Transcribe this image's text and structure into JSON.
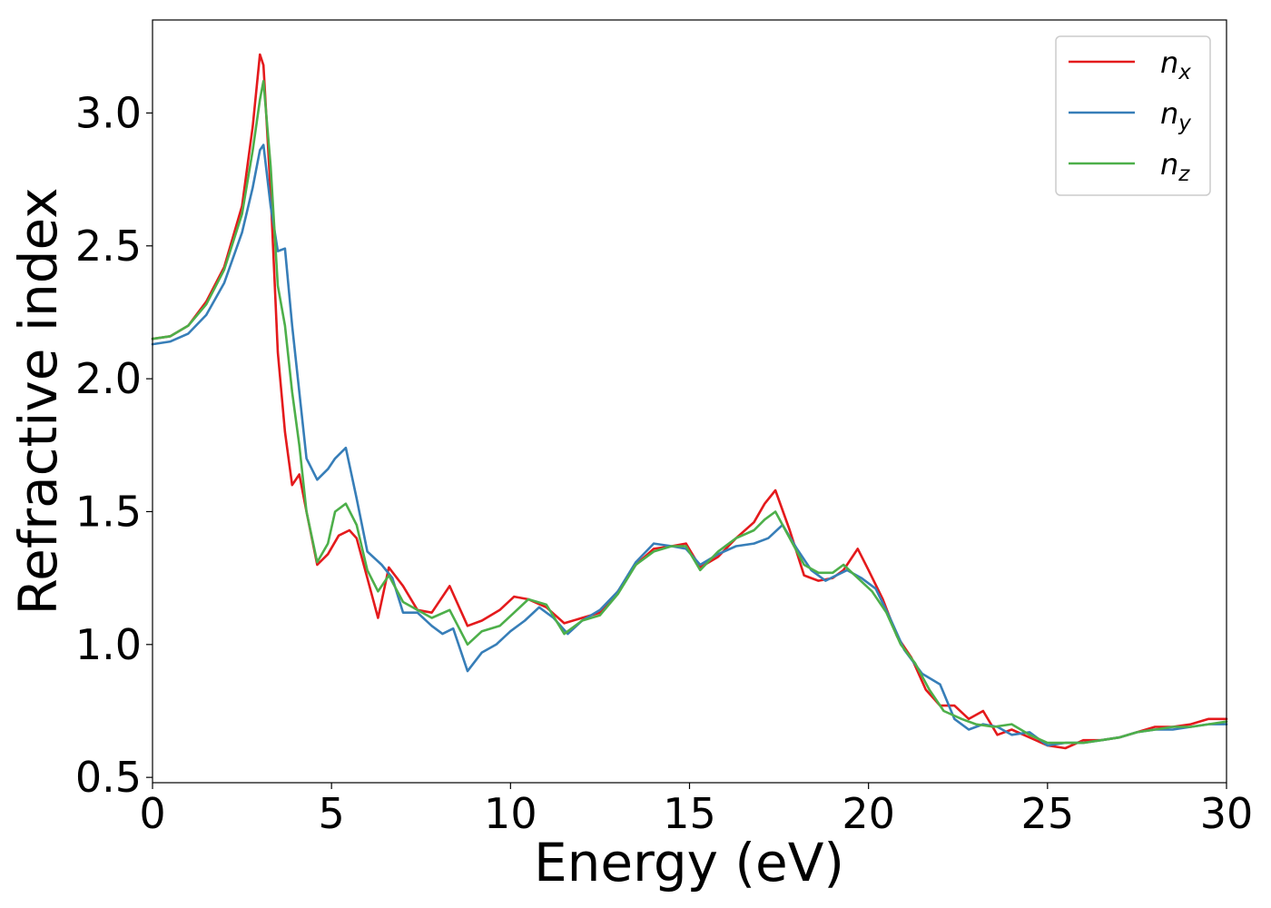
{
  "chart_data": {
    "type": "line",
    "title": "",
    "xlabel": "Energy (eV)",
    "ylabel": "Refractive index",
    "xlim": [
      0,
      30
    ],
    "ylim": [
      0.48,
      3.35
    ],
    "xticks": [
      0,
      5,
      10,
      15,
      20,
      25,
      30
    ],
    "yticks": [
      0.5,
      1.0,
      1.5,
      2.0,
      2.5,
      3.0
    ],
    "xtick_labels": [
      "0",
      "5",
      "10",
      "15",
      "20",
      "25",
      "30"
    ],
    "ytick_labels": [
      "0.5",
      "1.0",
      "1.5",
      "2.0",
      "2.5",
      "3.0"
    ],
    "grid": false,
    "legend_position": "top-right",
    "series": [
      {
        "name": "n_x",
        "legend_main": "n",
        "legend_sub": "x",
        "color": "#e41a1c",
        "points": [
          [
            0,
            2.15
          ],
          [
            0.5,
            2.16
          ],
          [
            1,
            2.2
          ],
          [
            1.5,
            2.29
          ],
          [
            2,
            2.42
          ],
          [
            2.5,
            2.65
          ],
          [
            2.8,
            2.95
          ],
          [
            3.0,
            3.22
          ],
          [
            3.1,
            3.18
          ],
          [
            3.3,
            2.7
          ],
          [
            3.5,
            2.1
          ],
          [
            3.7,
            1.8
          ],
          [
            3.9,
            1.6
          ],
          [
            4.1,
            1.64
          ],
          [
            4.3,
            1.5
          ],
          [
            4.6,
            1.3
          ],
          [
            4.9,
            1.34
          ],
          [
            5.2,
            1.41
          ],
          [
            5.5,
            1.43
          ],
          [
            5.7,
            1.4
          ],
          [
            6.0,
            1.25
          ],
          [
            6.3,
            1.1
          ],
          [
            6.6,
            1.29
          ],
          [
            7.0,
            1.22
          ],
          [
            7.4,
            1.13
          ],
          [
            7.8,
            1.12
          ],
          [
            8.3,
            1.22
          ],
          [
            8.8,
            1.07
          ],
          [
            9.2,
            1.09
          ],
          [
            9.7,
            1.13
          ],
          [
            10.1,
            1.18
          ],
          [
            10.5,
            1.17
          ],
          [
            11.0,
            1.14
          ],
          [
            11.5,
            1.08
          ],
          [
            12.0,
            1.1
          ],
          [
            12.5,
            1.12
          ],
          [
            13.0,
            1.2
          ],
          [
            13.5,
            1.3
          ],
          [
            14.0,
            1.36
          ],
          [
            14.5,
            1.37
          ],
          [
            14.9,
            1.38
          ],
          [
            15.3,
            1.29
          ],
          [
            15.8,
            1.33
          ],
          [
            16.3,
            1.4
          ],
          [
            16.8,
            1.46
          ],
          [
            17.1,
            1.53
          ],
          [
            17.4,
            1.58
          ],
          [
            17.8,
            1.43
          ],
          [
            18.2,
            1.26
          ],
          [
            18.6,
            1.24
          ],
          [
            19.0,
            1.25
          ],
          [
            19.3,
            1.28
          ],
          [
            19.7,
            1.36
          ],
          [
            20.0,
            1.28
          ],
          [
            20.4,
            1.17
          ],
          [
            20.8,
            1.03
          ],
          [
            21.2,
            0.95
          ],
          [
            21.6,
            0.83
          ],
          [
            22.0,
            0.77
          ],
          [
            22.4,
            0.77
          ],
          [
            22.8,
            0.72
          ],
          [
            23.2,
            0.75
          ],
          [
            23.6,
            0.66
          ],
          [
            24.0,
            0.68
          ],
          [
            24.5,
            0.65
          ],
          [
            25.0,
            0.62
          ],
          [
            25.5,
            0.61
          ],
          [
            26.0,
            0.64
          ],
          [
            26.5,
            0.64
          ],
          [
            27.0,
            0.65
          ],
          [
            27.5,
            0.67
          ],
          [
            28.0,
            0.69
          ],
          [
            28.5,
            0.69
          ],
          [
            29.0,
            0.7
          ],
          [
            29.5,
            0.72
          ],
          [
            30.0,
            0.72
          ]
        ]
      },
      {
        "name": "n_y",
        "legend_main": "n",
        "legend_sub": "y",
        "color": "#377eb8",
        "points": [
          [
            0,
            2.13
          ],
          [
            0.5,
            2.14
          ],
          [
            1,
            2.17
          ],
          [
            1.5,
            2.24
          ],
          [
            2,
            2.36
          ],
          [
            2.5,
            2.55
          ],
          [
            2.8,
            2.72
          ],
          [
            3.0,
            2.86
          ],
          [
            3.1,
            2.88
          ],
          [
            3.3,
            2.65
          ],
          [
            3.5,
            2.48
          ],
          [
            3.7,
            2.49
          ],
          [
            3.9,
            2.2
          ],
          [
            4.1,
            1.95
          ],
          [
            4.3,
            1.7
          ],
          [
            4.6,
            1.62
          ],
          [
            4.9,
            1.66
          ],
          [
            5.1,
            1.7
          ],
          [
            5.4,
            1.74
          ],
          [
            5.7,
            1.55
          ],
          [
            6.0,
            1.35
          ],
          [
            6.4,
            1.3
          ],
          [
            6.7,
            1.25
          ],
          [
            7.0,
            1.12
          ],
          [
            7.4,
            1.12
          ],
          [
            7.8,
            1.07
          ],
          [
            8.1,
            1.04
          ],
          [
            8.4,
            1.06
          ],
          [
            8.8,
            0.9
          ],
          [
            9.2,
            0.97
          ],
          [
            9.6,
            1.0
          ],
          [
            10.0,
            1.05
          ],
          [
            10.4,
            1.09
          ],
          [
            10.8,
            1.14
          ],
          [
            11.2,
            1.1
          ],
          [
            11.6,
            1.04
          ],
          [
            12.0,
            1.09
          ],
          [
            12.5,
            1.13
          ],
          [
            13.0,
            1.2
          ],
          [
            13.5,
            1.31
          ],
          [
            14.0,
            1.38
          ],
          [
            14.5,
            1.37
          ],
          [
            14.9,
            1.36
          ],
          [
            15.3,
            1.3
          ],
          [
            15.8,
            1.34
          ],
          [
            16.3,
            1.37
          ],
          [
            16.8,
            1.38
          ],
          [
            17.2,
            1.4
          ],
          [
            17.6,
            1.45
          ],
          [
            18.0,
            1.36
          ],
          [
            18.4,
            1.28
          ],
          [
            18.8,
            1.24
          ],
          [
            19.1,
            1.26
          ],
          [
            19.4,
            1.28
          ],
          [
            19.8,
            1.25
          ],
          [
            20.2,
            1.21
          ],
          [
            20.6,
            1.1
          ],
          [
            21.0,
            0.98
          ],
          [
            21.5,
            0.89
          ],
          [
            22.0,
            0.85
          ],
          [
            22.4,
            0.72
          ],
          [
            22.8,
            0.68
          ],
          [
            23.2,
            0.7
          ],
          [
            23.6,
            0.69
          ],
          [
            24.0,
            0.66
          ],
          [
            24.5,
            0.67
          ],
          [
            25.0,
            0.62
          ],
          [
            25.5,
            0.63
          ],
          [
            26.0,
            0.63
          ],
          [
            26.5,
            0.64
          ],
          [
            27.0,
            0.65
          ],
          [
            27.5,
            0.67
          ],
          [
            28.0,
            0.68
          ],
          [
            28.5,
            0.68
          ],
          [
            29.0,
            0.69
          ],
          [
            29.5,
            0.7
          ],
          [
            30.0,
            0.7
          ]
        ]
      },
      {
        "name": "n_z",
        "legend_main": "n",
        "legend_sub": "z",
        "color": "#4daf4a",
        "points": [
          [
            0,
            2.15
          ],
          [
            0.5,
            2.16
          ],
          [
            1,
            2.2
          ],
          [
            1.5,
            2.28
          ],
          [
            2,
            2.41
          ],
          [
            2.5,
            2.62
          ],
          [
            2.8,
            2.86
          ],
          [
            3.0,
            3.05
          ],
          [
            3.1,
            3.12
          ],
          [
            3.3,
            2.8
          ],
          [
            3.5,
            2.35
          ],
          [
            3.7,
            2.2
          ],
          [
            3.9,
            1.95
          ],
          [
            4.1,
            1.75
          ],
          [
            4.3,
            1.5
          ],
          [
            4.6,
            1.31
          ],
          [
            4.9,
            1.38
          ],
          [
            5.1,
            1.5
          ],
          [
            5.4,
            1.53
          ],
          [
            5.7,
            1.45
          ],
          [
            6.0,
            1.28
          ],
          [
            6.3,
            1.2
          ],
          [
            6.6,
            1.26
          ],
          [
            7.0,
            1.16
          ],
          [
            7.4,
            1.13
          ],
          [
            7.8,
            1.1
          ],
          [
            8.3,
            1.13
          ],
          [
            8.8,
            1.0
          ],
          [
            9.2,
            1.05
          ],
          [
            9.7,
            1.07
          ],
          [
            10.1,
            1.12
          ],
          [
            10.5,
            1.17
          ],
          [
            11.0,
            1.15
          ],
          [
            11.5,
            1.04
          ],
          [
            12.0,
            1.09
          ],
          [
            12.5,
            1.11
          ],
          [
            13.0,
            1.19
          ],
          [
            13.5,
            1.3
          ],
          [
            14.0,
            1.35
          ],
          [
            14.5,
            1.37
          ],
          [
            14.9,
            1.37
          ],
          [
            15.3,
            1.28
          ],
          [
            15.8,
            1.35
          ],
          [
            16.3,
            1.4
          ],
          [
            16.8,
            1.43
          ],
          [
            17.1,
            1.47
          ],
          [
            17.4,
            1.5
          ],
          [
            17.8,
            1.4
          ],
          [
            18.2,
            1.3
          ],
          [
            18.6,
            1.27
          ],
          [
            19.0,
            1.27
          ],
          [
            19.3,
            1.3
          ],
          [
            19.7,
            1.25
          ],
          [
            20.1,
            1.2
          ],
          [
            20.5,
            1.12
          ],
          [
            20.9,
            1.0
          ],
          [
            21.3,
            0.93
          ],
          [
            21.7,
            0.83
          ],
          [
            22.1,
            0.75
          ],
          [
            22.6,
            0.72
          ],
          [
            23.0,
            0.7
          ],
          [
            23.5,
            0.69
          ],
          [
            24.0,
            0.7
          ],
          [
            24.5,
            0.66
          ],
          [
            25.0,
            0.63
          ],
          [
            25.5,
            0.63
          ],
          [
            26.0,
            0.63
          ],
          [
            26.5,
            0.64
          ],
          [
            27.0,
            0.65
          ],
          [
            27.5,
            0.67
          ],
          [
            28.0,
            0.68
          ],
          [
            28.5,
            0.69
          ],
          [
            29.0,
            0.69
          ],
          [
            29.5,
            0.7
          ],
          [
            30.0,
            0.71
          ]
        ]
      }
    ]
  }
}
